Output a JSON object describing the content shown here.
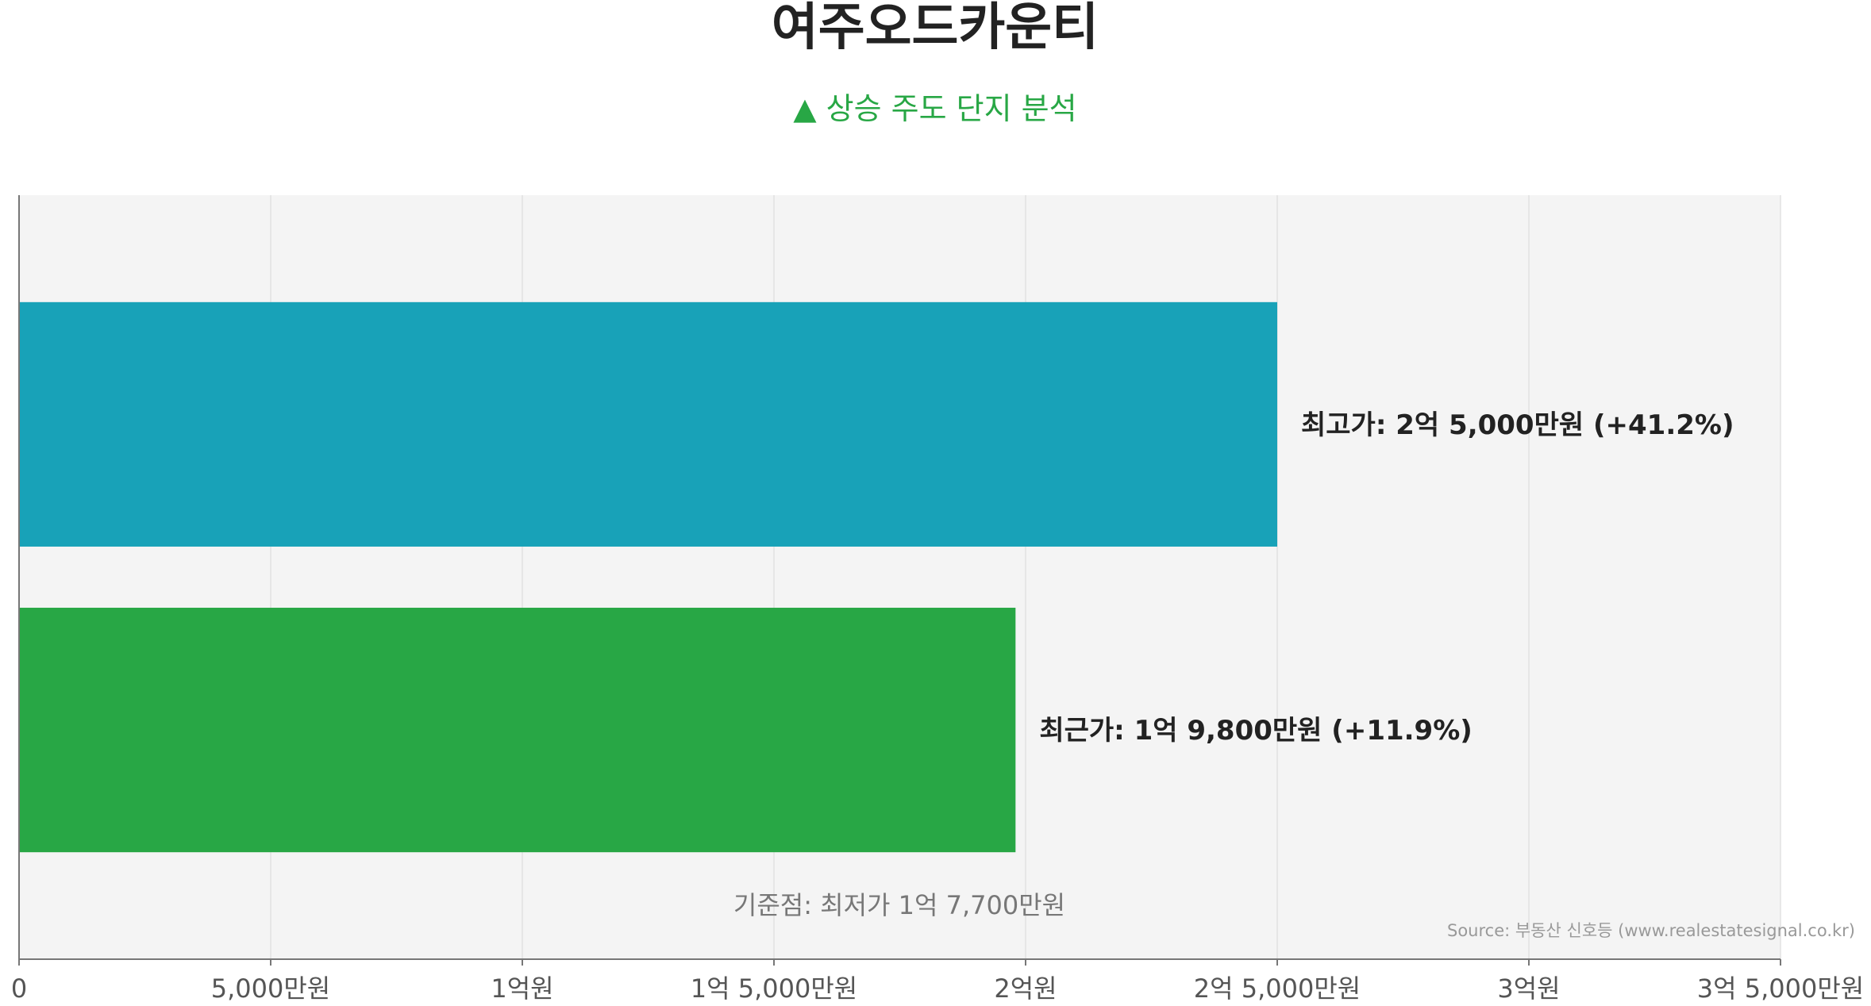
{
  "chart_data": {
    "type": "bar",
    "orientation": "horizontal",
    "title": "여주오드카운티",
    "subtitle": "▲ 상승 주도 단지 분석",
    "categories": [
      "최고가",
      "최근가"
    ],
    "values": [
      250000000,
      198000000
    ],
    "bar_labels": [
      "최고가: 2억 5,000만원 (+41.2%)",
      "최근가: 1억 9,800만원 (+11.9%)"
    ],
    "x_ticks": [
      {
        "value": 0,
        "label": "0"
      },
      {
        "value": 50000000,
        "label": "5,000만원"
      },
      {
        "value": 100000000,
        "label": "1억원"
      },
      {
        "value": 150000000,
        "label": "1억 5,000만원"
      },
      {
        "value": 200000000,
        "label": "2억원"
      },
      {
        "value": 250000000,
        "label": "2억 5,000만원"
      },
      {
        "value": 300000000,
        "label": "3억원"
      },
      {
        "value": 350000000,
        "label": "3억 5,000만원"
      }
    ],
    "xlim": [
      0,
      350000000
    ],
    "grid": true,
    "annotation": "기준점: 최저가 1억 7,700만원",
    "source": "Source: 부동산 신호등 (www.realestatesignal.co.kr)"
  },
  "colors": {
    "bars": [
      "#18a2b8",
      "#28a745"
    ],
    "subtitle": "#28a745",
    "plot_background": "#f4f4f4",
    "grid": "#e2e2e2",
    "axis": "#777777",
    "tick_label": "#555555",
    "bar_label": "#222222",
    "title": "#222222",
    "annotation": "#777777",
    "source": "#999999"
  }
}
